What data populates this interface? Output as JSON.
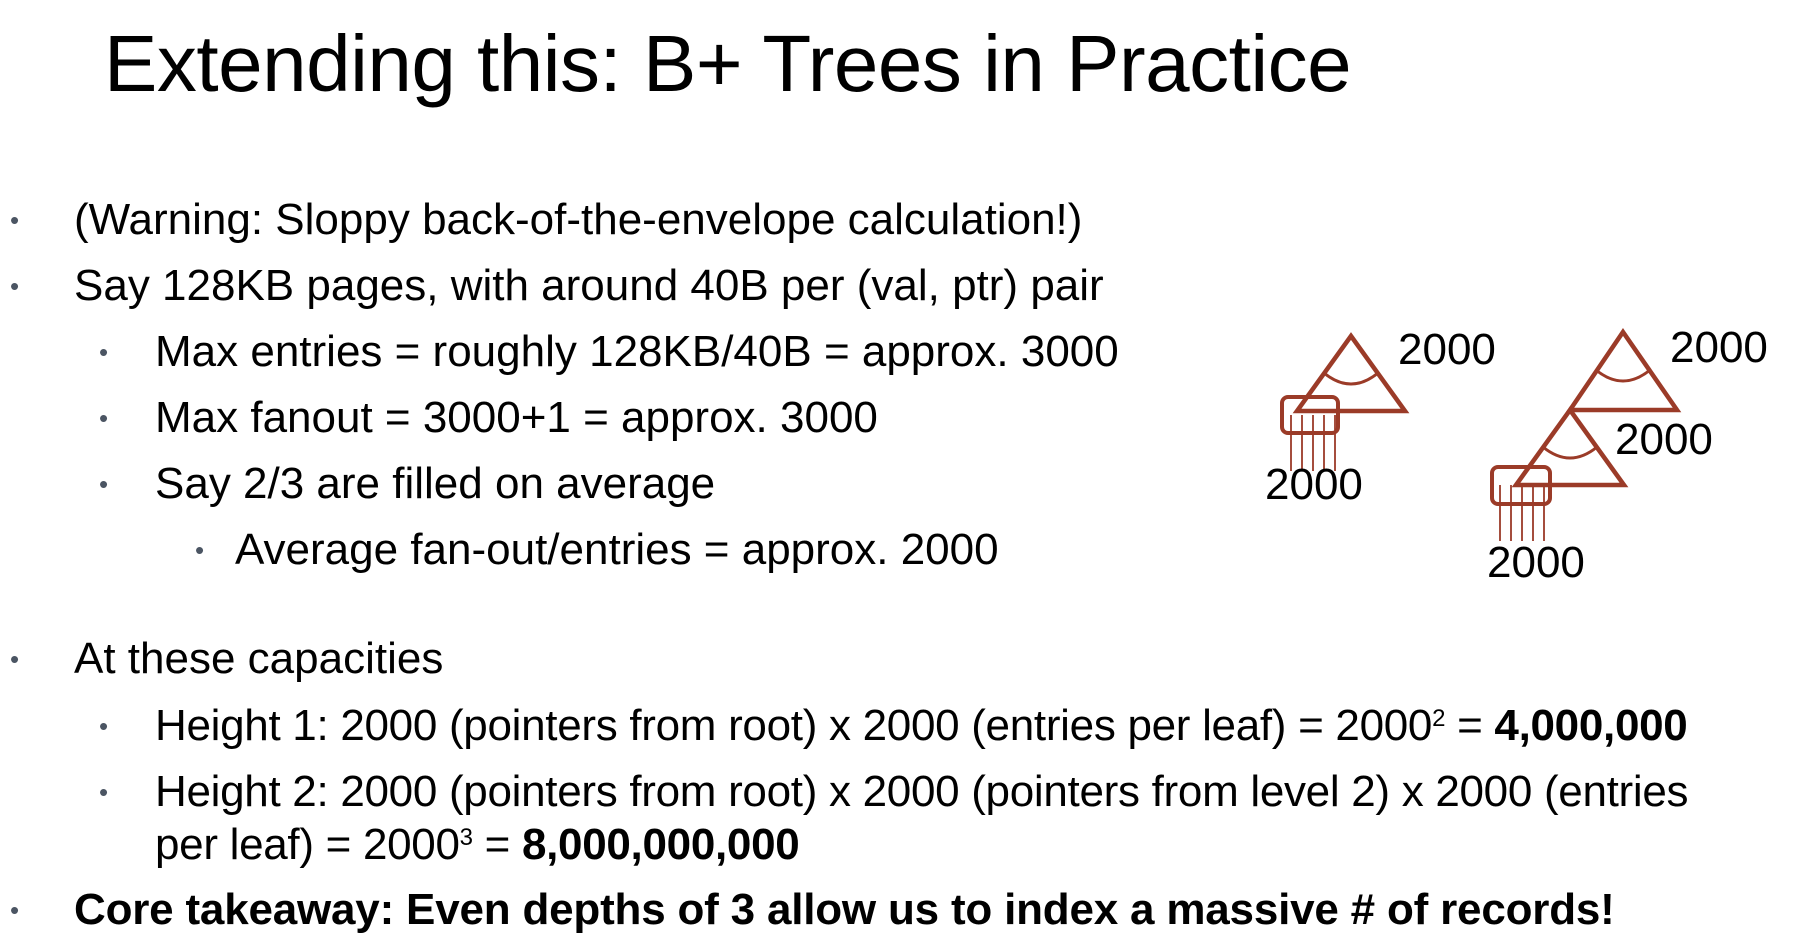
{
  "slide": {
    "title": "Extending this: B+ Trees in Practice"
  },
  "bullets": {
    "warning": "(Warning: Sloppy back-of-the-envelope calculation!)",
    "pages": "Say 128KB pages, with around 40B per (val, ptr) pair",
    "max_entries": "Max entries = roughly 128KB/40B = approx. 3000",
    "max_fanout": "Max fanout = 3000+1 = approx. 3000",
    "filled": "Say 2/3 are filled on average",
    "average": "Average fan-out/entries = approx. 2000",
    "capacities": "At these capacities",
    "height1_text": "Height 1: 2000 (pointers from root) x 2000 (entries per leaf) = 2000",
    "height1_exp": "2",
    "height1_eq": " = ",
    "height1_result": "4,000,000",
    "height2_line1": "Height 2: 2000 (pointers from root) x 2000 (pointers from level 2) x 2000 (entries",
    "height2_line2": "per leaf) = 2000",
    "height2_exp": "3",
    "height2_eq": " = ",
    "height2_result": "8,000,000,000",
    "takeaway": "Core takeaway: Even depths of 3 allow us to index a massive # of records!"
  },
  "diagram": {
    "tree1_fanout": "2000",
    "tree1_leaf": "2000",
    "tree2_root_fanout": "2000",
    "tree2_level2_fanout": "2000",
    "tree2_leaf": "2000",
    "tree_color": "#9b3b28"
  },
  "bullet_glyph": "•"
}
